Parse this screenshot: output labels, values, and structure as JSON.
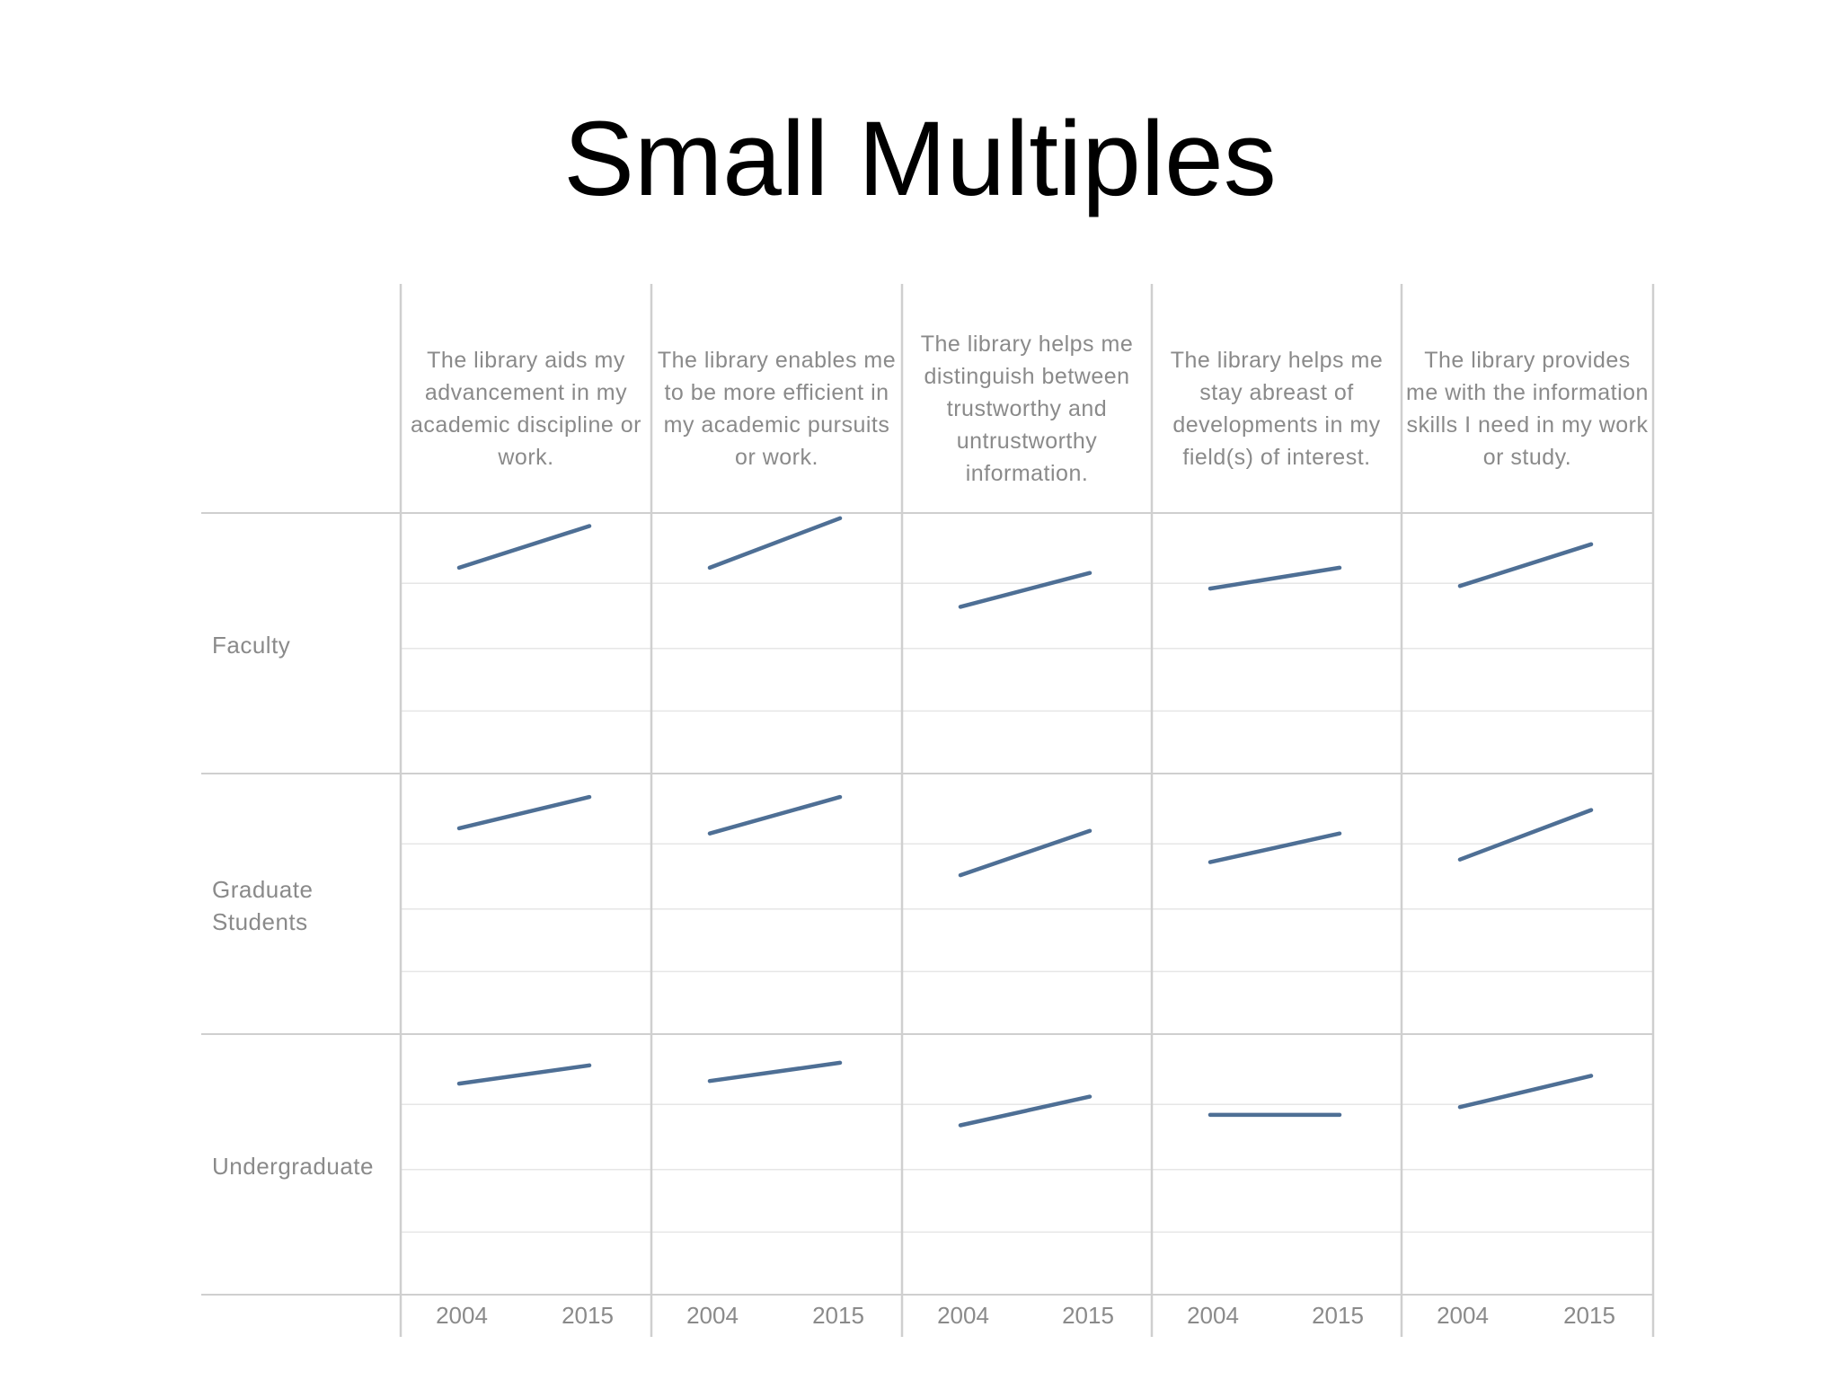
{
  "title": "Small Multiples",
  "chart_data": {
    "type": "line",
    "x": [
      "2004",
      "2015"
    ],
    "columns": [
      "The library aids my advancement in my academic discipline or work.",
      "The library enables me to be more efficient in my academic pursuits or work.",
      "The library helps me distinguish between trustworthy and untrustworthy information.",
      "The library helps me stay abreast of developments in my field(s) of interest.",
      "The library provides me with the information skills I need in my work or study."
    ],
    "rows": [
      "Faculty",
      "Graduate Students",
      "Undergraduate"
    ],
    "y_relative": true,
    "panels": [
      [
        [
          0.79,
          0.95
        ],
        [
          0.79,
          0.98
        ],
        [
          0.64,
          0.77
        ],
        [
          0.71,
          0.79
        ],
        [
          0.72,
          0.88
        ]
      ],
      [
        [
          0.79,
          0.91
        ],
        [
          0.77,
          0.91
        ],
        [
          0.61,
          0.78
        ],
        [
          0.66,
          0.77
        ],
        [
          0.67,
          0.86
        ]
      ],
      [
        [
          0.81,
          0.88
        ],
        [
          0.82,
          0.89
        ],
        [
          0.65,
          0.76
        ],
        [
          0.69,
          0.69
        ],
        [
          0.72,
          0.84
        ]
      ]
    ],
    "grid": true,
    "line_color": "#4e6f95",
    "grid_color": "#e6e6e6",
    "separator_color": "#cfcfcf"
  }
}
